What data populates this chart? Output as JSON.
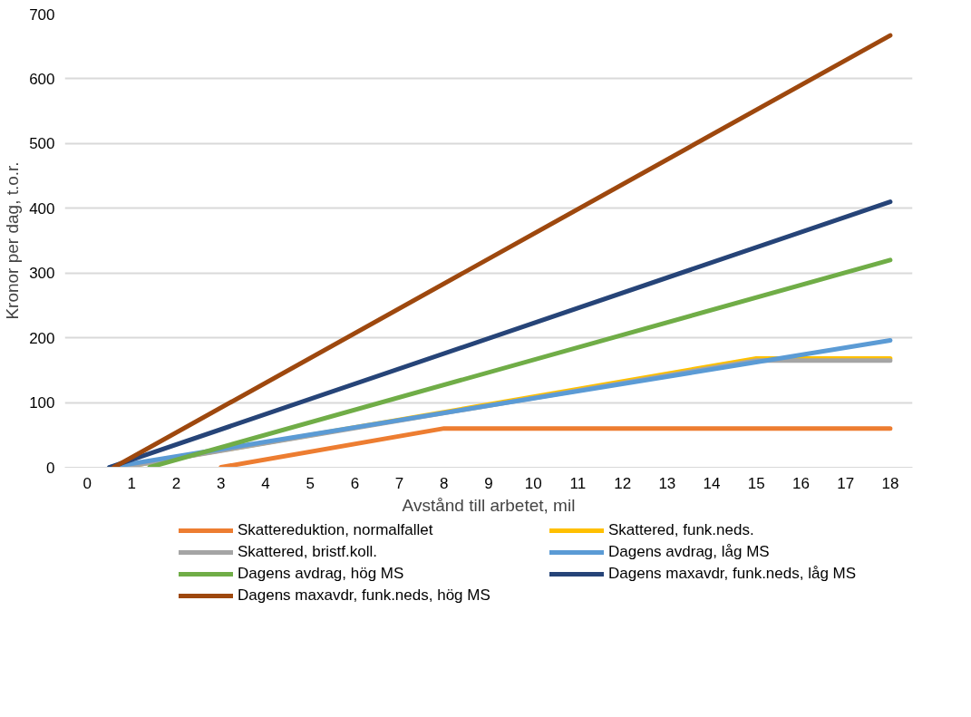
{
  "chart_data": {
    "type": "line",
    "xlabel": "Avstånd till arbetet, mil",
    "ylabel": "Kronor per dag, t.o.r.",
    "xlim": [
      -0.5,
      18.5
    ],
    "xticks": [
      0,
      1,
      2,
      3,
      4,
      5,
      6,
      7,
      8,
      9,
      10,
      11,
      12,
      13,
      14,
      15,
      16,
      17,
      18
    ],
    "ylim": [
      0,
      700
    ],
    "yticks": [
      0,
      100,
      200,
      300,
      400,
      500,
      600,
      700
    ],
    "grid": "y",
    "legend": "bottom",
    "line_style": "solid",
    "marker": "none",
    "series": [
      {
        "name": "Skattereduktion, normalfallet",
        "color": "#ed7d31",
        "x": [
          3,
          8,
          18
        ],
        "values": [
          0,
          60,
          60
        ]
      },
      {
        "name": "Skattered, funk.neds.",
        "color": "#ffc000",
        "x": [
          0.8,
          15,
          18
        ],
        "values": [
          0,
          168,
          168
        ]
      },
      {
        "name": "Skattered, bristf.koll.",
        "color": "#a5a5a5",
        "x": [
          0.8,
          15,
          18
        ],
        "values": [
          0,
          165,
          165
        ]
      },
      {
        "name": "Dagens avdrag, låg MS",
        "color": "#5b9bd5",
        "x": [
          0.5,
          18
        ],
        "values": [
          0,
          196
        ]
      },
      {
        "name": "Dagens avdrag, hög MS",
        "color": "#70ad47",
        "x": [
          1.4,
          18
        ],
        "values": [
          0,
          320
        ]
      },
      {
        "name": "Dagens maxavdr, funk.neds, låg MS",
        "color": "#264478",
        "x": [
          0.5,
          18
        ],
        "values": [
          0,
          410
        ]
      },
      {
        "name": "Dagens maxavdr, funk.neds, hög MS",
        "color": "#9e480e",
        "x": [
          0.6,
          18
        ],
        "values": [
          0,
          667
        ]
      }
    ]
  }
}
